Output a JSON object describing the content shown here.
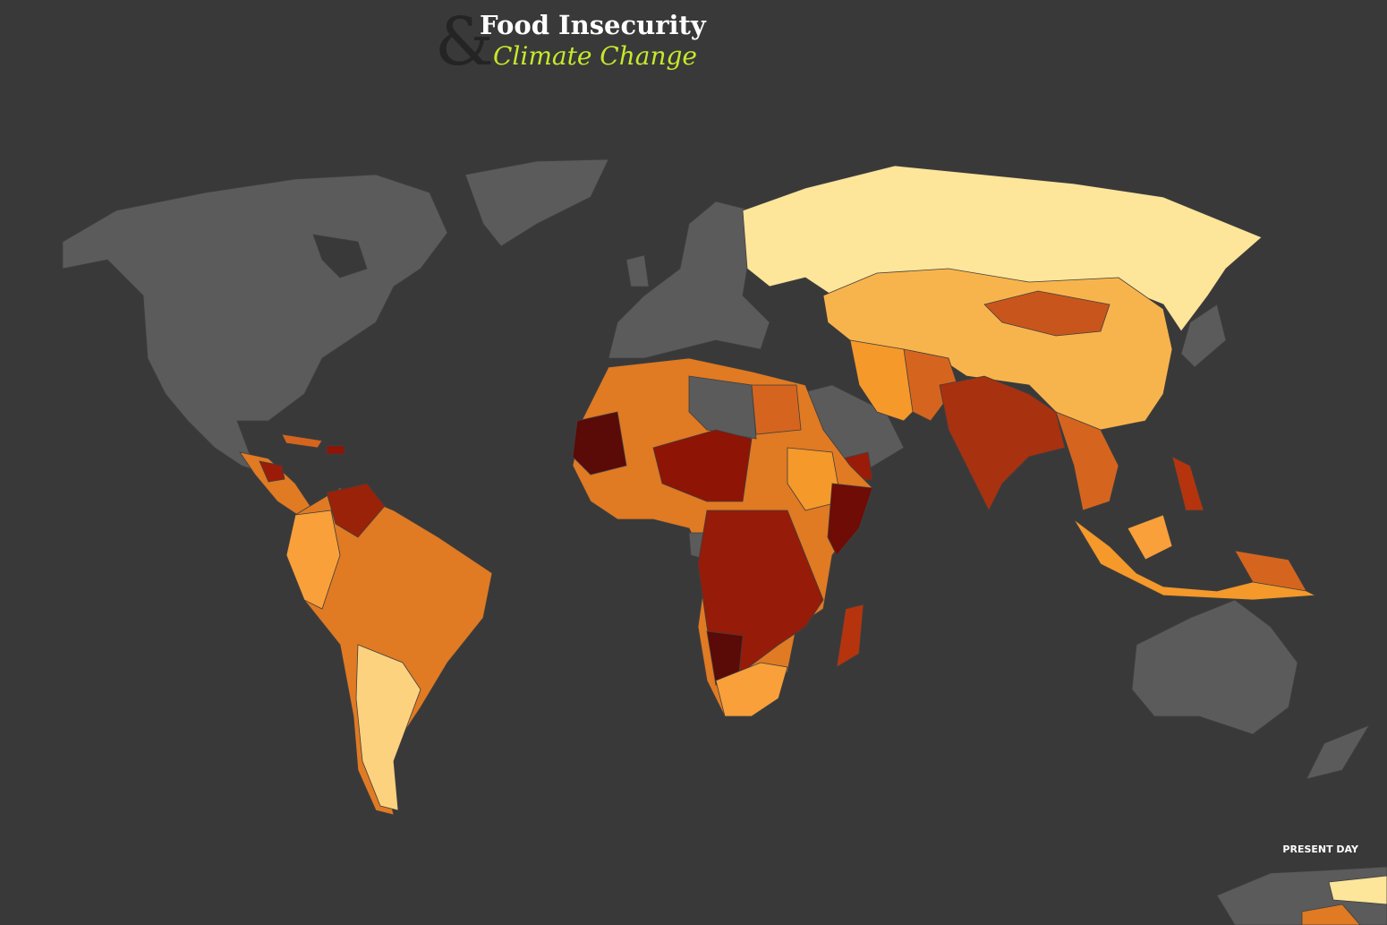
{
  "header": {
    "logo": "&",
    "title": "Food Insecurity",
    "subtitle": "Climate Change"
  },
  "map": {
    "label": "PRESENT DAY"
  }
}
